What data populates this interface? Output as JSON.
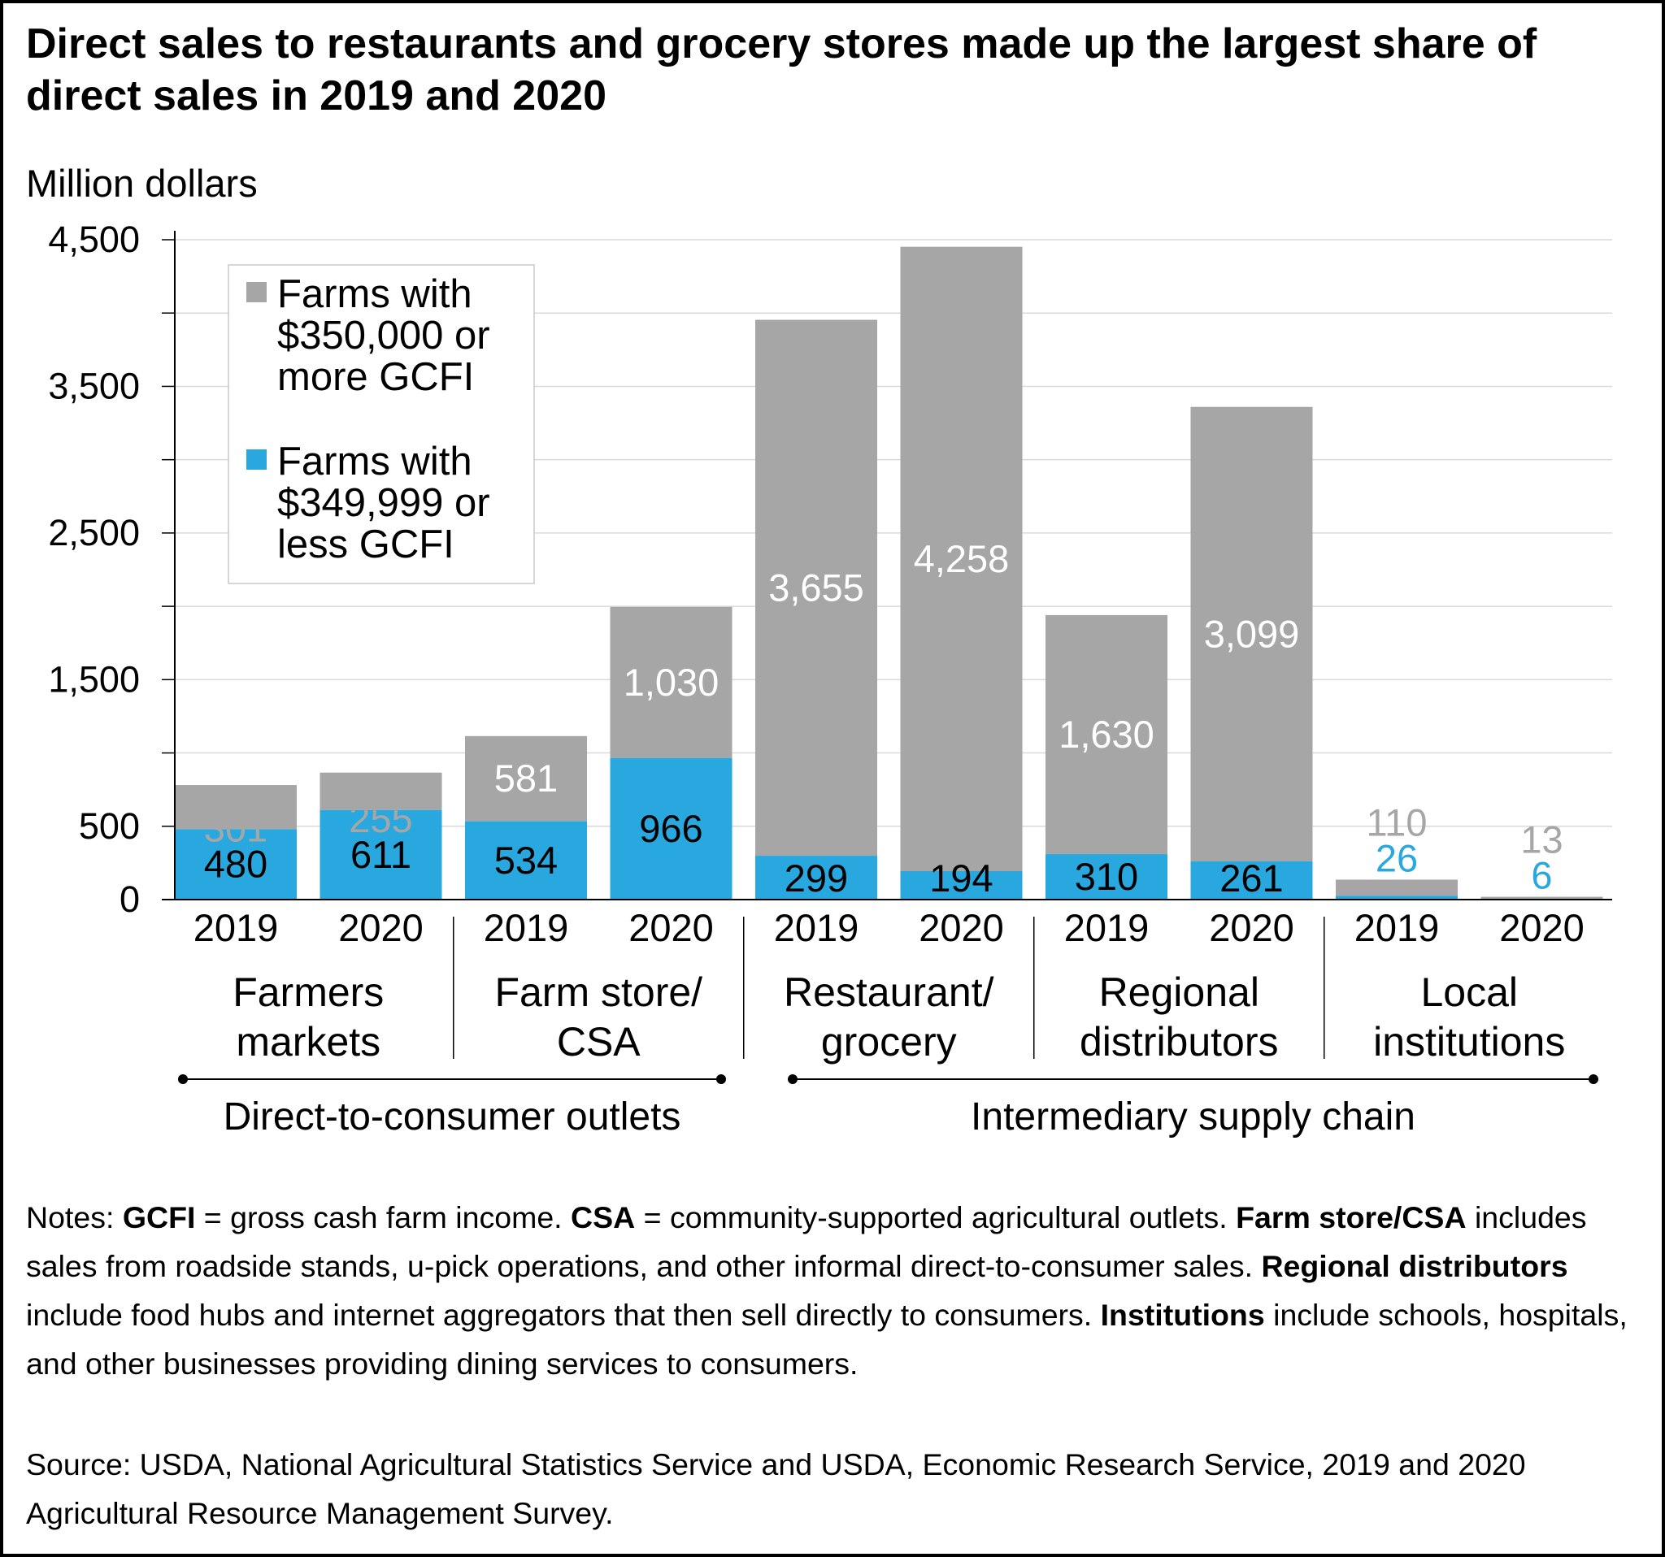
{
  "title": "Direct sales to restaurants and grocery stores made up the largest share of direct sales in 2019 and 2020",
  "notes": {
    "prefix": "Notes: ",
    "gcfi_term": "GCFI",
    "gcfi_def": " = gross cash farm income. ",
    "csa_term": "CSA",
    "csa_def": " = community-supported agricultural outlets. ",
    "farmstore_term": "Farm store/CSA",
    "farmstore_def": " includes sales from roadside stands, u-pick operations, and other informal direct-to-consumer sales. ",
    "regional_term": "Regional distributors",
    "regional_def": " include food hubs and internet aggregators that then sell directly to consumers. ",
    "institutions_term": "Institutions",
    "institutions_def": " include schools, hospitals, and other businesses providing dining services to consumers."
  },
  "source": "Source: USDA, National Agricultural Statistics Service and USDA, Economic Research Service, 2019 and 2020 Agricultural Resource Management Survey.",
  "colors": {
    "large_farms": "#A6A6A6",
    "small_farms": "#29A8E0",
    "axis": "#000000",
    "grid": "#D9D9D9"
  },
  "chart_data": {
    "type": "bar",
    "stacked": true,
    "ylabel": "Million dollars",
    "ylim": [
      0,
      4500
    ],
    "yticks": [
      0,
      500,
      1500,
      2500,
      3500,
      4500
    ],
    "ytick_labels": [
      "0",
      "500",
      "1,500",
      "2,500",
      "3,500",
      "4,500"
    ],
    "grid": true,
    "legend_position": "top-left",
    "categories": [
      {
        "year": "2019",
        "group": "Farmers markets"
      },
      {
        "year": "2020",
        "group": "Farmers markets"
      },
      {
        "year": "2019",
        "group": "Farm store/CSA"
      },
      {
        "year": "2020",
        "group": "Farm store/CSA"
      },
      {
        "year": "2019",
        "group": "Restaurant/grocery"
      },
      {
        "year": "2020",
        "group": "Restaurant/grocery"
      },
      {
        "year": "2019",
        "group": "Regional distributors"
      },
      {
        "year": "2020",
        "group": "Regional distributors"
      },
      {
        "year": "2019",
        "group": "Local institutions"
      },
      {
        "year": "2020",
        "group": "Local institutions"
      }
    ],
    "series": [
      {
        "name": "Farms with $349,999 or less GCFI",
        "name_lines": [
          "Farms with",
          "$349,999 or",
          "less GCFI"
        ],
        "values": [
          480,
          611,
          534,
          966,
          299,
          194,
          310,
          261,
          26,
          6
        ],
        "labels": [
          "480",
          "611",
          "534",
          "966",
          "299",
          "194",
          "310",
          "261",
          "26",
          "6"
        ]
      },
      {
        "name": "Farms with $350,000 or more GCFI",
        "name_lines": [
          "Farms with",
          "$350,000 or",
          "more GCFI"
        ],
        "values": [
          301,
          255,
          581,
          1030,
          3655,
          4258,
          1630,
          3099,
          110,
          13
        ],
        "labels": [
          "301",
          "255",
          "581",
          "1,030",
          "3,655",
          "4,258",
          "1,630",
          "3,099",
          "110",
          "13"
        ]
      }
    ],
    "groups": [
      {
        "name": "Farmers markets",
        "lines": [
          "Farmers",
          "markets"
        ]
      },
      {
        "name": "Farm store/CSA",
        "lines": [
          "Farm store/",
          "CSA"
        ]
      },
      {
        "name": "Restaurant/grocery",
        "lines": [
          "Restaurant/",
          "grocery"
        ]
      },
      {
        "name": "Regional distributors",
        "lines": [
          "Regional",
          "distributors"
        ]
      },
      {
        "name": "Local institutions",
        "lines": [
          "Local",
          "institutions"
        ]
      }
    ],
    "supergroups": [
      {
        "name": "Direct-to-consumer outlets",
        "groups": [
          "Farmers markets",
          "Farm store/CSA"
        ]
      },
      {
        "name": "Intermediary supply chain",
        "groups": [
          "Restaurant/grocery",
          "Regional distributors",
          "Local institutions"
        ]
      }
    ]
  }
}
